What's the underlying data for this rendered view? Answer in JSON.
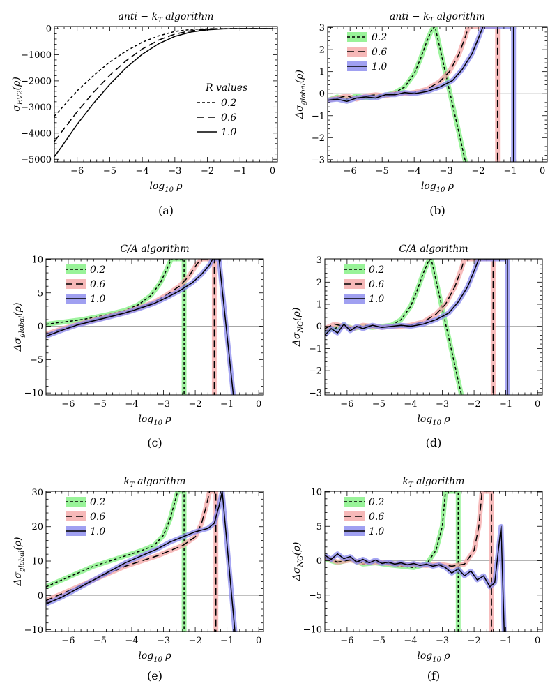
{
  "chart_data": [
    {
      "panel": "a",
      "type": "line",
      "title": "anti − k_T algorithm",
      "caption": "(a)",
      "xlabel": "log10 ρ",
      "ylabel": "σ_EV2(ρ)",
      "xlim": [
        -6.7,
        0.15
      ],
      "ylim": [
        -5100,
        80
      ],
      "xticks": [
        -6,
        -5,
        -4,
        -3,
        -2,
        -1,
        0
      ],
      "yticks": [
        -5000,
        -4000,
        -3000,
        -2000,
        -1000,
        0
      ],
      "legend": {
        "title": "R values",
        "position": "right-center",
        "shaded": false
      },
      "series": [
        {
          "name": "0.2",
          "style": "dotted",
          "x": [
            -6.7,
            -6.5,
            -6,
            -5.5,
            -5,
            -4.5,
            -4,
            -3.5,
            -3,
            -2.5,
            -2,
            -1.5,
            -1,
            -0.5,
            0
          ],
          "values": [
            -3350,
            -3080,
            -2380,
            -1800,
            -1280,
            -860,
            -520,
            -280,
            -110,
            -30,
            -5,
            0,
            0,
            0,
            0
          ]
        },
        {
          "name": "0.6",
          "style": "dashed",
          "x": [
            -6.7,
            -6.5,
            -6,
            -5.5,
            -5,
            -4.5,
            -4,
            -3.5,
            -3,
            -2.5,
            -2,
            -1.5,
            -1,
            -0.5,
            0
          ],
          "values": [
            -4320,
            -3990,
            -3180,
            -2440,
            -1790,
            -1230,
            -780,
            -440,
            -210,
            -80,
            -20,
            -3,
            0,
            0,
            0
          ]
        },
        {
          "name": "1.0",
          "style": "solid",
          "x": [
            -6.7,
            -6.5,
            -6,
            -5.5,
            -5,
            -4.5,
            -4,
            -3.5,
            -3,
            -2.5,
            -2,
            -1.5,
            -1,
            -0.5,
            0
          ],
          "values": [
            -4900,
            -4560,
            -3660,
            -2860,
            -2140,
            -1500,
            -980,
            -580,
            -300,
            -130,
            -45,
            -10,
            -1,
            0,
            0
          ]
        }
      ]
    },
    {
      "panel": "b",
      "type": "line",
      "title": "anti − k_T algorithm",
      "caption": "(b)",
      "xlabel": "log10 ρ",
      "ylabel": "Δσ_global(ρ)",
      "xlim": [
        -6.7,
        0.15
      ],
      "ylim": [
        -3.1,
        3.05
      ],
      "xticks": [
        -6,
        -5,
        -4,
        -3,
        -2,
        -1,
        0
      ],
      "yticks": [
        -3,
        -2,
        -1,
        0,
        1,
        2,
        3
      ],
      "legend": {
        "position": "top-left",
        "shaded": true
      },
      "series": [
        {
          "name": "0.2",
          "style": "dotted",
          "band": "#7ff07f",
          "x": [
            -6.7,
            -6.4,
            -6.1,
            -5.8,
            -5.5,
            -5.2,
            -4.9,
            -4.6,
            -4.3,
            -4.0,
            -3.8,
            -3.6,
            -3.45,
            -3.35,
            -2.4,
            -2.4
          ],
          "values": [
            -0.3,
            -0.15,
            -0.25,
            -0.1,
            -0.2,
            -0.12,
            -0.08,
            0.05,
            0.3,
            0.9,
            1.6,
            2.4,
            2.9,
            3.05,
            -3.1,
            -3.1
          ]
        },
        {
          "name": "0.6",
          "style": "dashed",
          "band": "#f4a6a6",
          "x": [
            -6.7,
            -6.4,
            -6.1,
            -5.8,
            -5.5,
            -5.2,
            -4.9,
            -4.6,
            -4.3,
            -4.0,
            -3.6,
            -3.2,
            -2.9,
            -2.6,
            -2.4,
            -2.3,
            -1.4,
            -1.4
          ],
          "values": [
            -0.3,
            -0.2,
            -0.1,
            -0.25,
            -0.1,
            -0.05,
            -0.1,
            0.0,
            0.0,
            0.05,
            0.2,
            0.55,
            1.0,
            1.8,
            2.6,
            3.05,
            3.05,
            -3.1
          ]
        },
        {
          "name": "1.0",
          "style": "solid",
          "band": "#8888ee",
          "x": [
            -6.7,
            -6.4,
            -6.1,
            -5.8,
            -5.5,
            -5.2,
            -4.9,
            -4.6,
            -4.3,
            -4.0,
            -3.6,
            -3.2,
            -2.8,
            -2.5,
            -2.2,
            -2.0,
            -1.85,
            -0.9,
            -0.9
          ],
          "values": [
            -0.3,
            -0.25,
            -0.35,
            -0.2,
            -0.15,
            -0.2,
            -0.05,
            -0.05,
            0.05,
            0.0,
            0.1,
            0.3,
            0.6,
            1.1,
            1.8,
            2.5,
            3.05,
            3.05,
            -3.1
          ]
        }
      ]
    },
    {
      "panel": "c",
      "type": "line",
      "title": "C/A algorithm",
      "caption": "(c)",
      "xlabel": "log10 ρ",
      "ylabel": "Δσ_global(ρ)",
      "xlim": [
        -6.7,
        0.15
      ],
      "ylim": [
        -10.3,
        10.1
      ],
      "xticks": [
        -6,
        -5,
        -4,
        -3,
        -2,
        -1,
        0
      ],
      "yticks": [
        -10,
        -5,
        0,
        5,
        10
      ],
      "legend": {
        "position": "top-left",
        "shaded": true
      },
      "series": [
        {
          "name": "0.2",
          "style": "dotted",
          "band": "#7ff07f",
          "x": [
            -6.7,
            -6.2,
            -5.7,
            -5.2,
            -4.7,
            -4.2,
            -3.8,
            -3.4,
            -3.1,
            -2.9,
            -2.75,
            -2.35,
            -2.35
          ],
          "values": [
            0.3,
            0.6,
            0.9,
            1.3,
            1.8,
            2.4,
            3.2,
            4.6,
            6.5,
            8.5,
            10.1,
            10.1,
            -10.3
          ]
        },
        {
          "name": "0.6",
          "style": "dashed",
          "band": "#f4a6a6",
          "x": [
            -6.7,
            -6.2,
            -5.7,
            -5.2,
            -4.7,
            -4.2,
            -3.8,
            -3.3,
            -2.9,
            -2.5,
            -2.2,
            -1.95,
            -1.8,
            -1.4,
            -1.4
          ],
          "values": [
            -1.2,
            -0.4,
            0.3,
            0.9,
            1.5,
            2.1,
            2.7,
            3.6,
            4.7,
            6.0,
            7.5,
            9.3,
            10.1,
            10.1,
            -10.3
          ]
        },
        {
          "name": "1.0",
          "style": "solid",
          "band": "#8888ee",
          "x": [
            -6.7,
            -6.2,
            -5.7,
            -5.2,
            -4.7,
            -4.2,
            -3.8,
            -3.3,
            -2.9,
            -2.5,
            -2.1,
            -1.8,
            -1.55,
            -1.45,
            -1.25,
            -0.8
          ],
          "values": [
            -1.5,
            -0.6,
            0.2,
            0.8,
            1.4,
            2.0,
            2.6,
            3.4,
            4.3,
            5.3,
            6.5,
            7.8,
            9.2,
            10.1,
            10.1,
            -10.3
          ]
        }
      ]
    },
    {
      "panel": "d",
      "type": "line",
      "title": "C/A algorithm",
      "caption": "(d)",
      "xlabel": "log10 ρ",
      "ylabel": "Δσ_NG(ρ)",
      "xlim": [
        -6.7,
        0.15
      ],
      "ylim": [
        -3.1,
        3.05
      ],
      "xticks": [
        -6,
        -5,
        -4,
        -3,
        -2,
        -1,
        0
      ],
      "yticks": [
        -3,
        -2,
        -1,
        0,
        1,
        2,
        3
      ],
      "legend": {
        "position": "top-left",
        "shaded": true
      },
      "series": [
        {
          "name": "0.2",
          "style": "dotted",
          "band": "#7ff07f",
          "x": [
            -6.7,
            -6.4,
            -6.1,
            -5.8,
            -5.5,
            -5.2,
            -4.9,
            -4.6,
            -4.3,
            -4.0,
            -3.8,
            -3.6,
            -3.45,
            -3.35,
            -2.4,
            -2.4
          ],
          "values": [
            -0.2,
            -0.1,
            0.05,
            -0.1,
            0.0,
            -0.05,
            0.0,
            0.05,
            0.3,
            0.9,
            1.6,
            2.4,
            2.9,
            3.05,
            -3.1,
            -3.1
          ]
        },
        {
          "name": "0.6",
          "style": "dashed",
          "band": "#f4a6a6",
          "x": [
            -6.7,
            -6.4,
            -6.1,
            -5.8,
            -5.5,
            -5.2,
            -4.9,
            -4.6,
            -4.3,
            -4.0,
            -3.6,
            -3.2,
            -2.9,
            -2.6,
            -2.4,
            -2.3,
            -1.4,
            -1.4
          ],
          "values": [
            -0.1,
            0.1,
            0.0,
            -0.1,
            0.05,
            0.0,
            -0.05,
            0.0,
            0.0,
            0.05,
            0.2,
            0.55,
            1.0,
            1.8,
            2.6,
            3.05,
            3.05,
            -3.1
          ]
        },
        {
          "name": "1.0",
          "style": "solid",
          "band": "#8888ee",
          "x": [
            -6.7,
            -6.5,
            -6.3,
            -6.1,
            -5.9,
            -5.7,
            -5.5,
            -5.2,
            -4.9,
            -4.6,
            -4.3,
            -4.0,
            -3.6,
            -3.2,
            -2.8,
            -2.5,
            -2.2,
            -2.0,
            -1.85,
            -0.95,
            -0.95
          ],
          "values": [
            -0.4,
            -0.1,
            -0.3,
            0.1,
            -0.2,
            0.0,
            -0.1,
            0.05,
            -0.05,
            0.0,
            0.05,
            0.0,
            0.1,
            0.3,
            0.6,
            1.1,
            1.8,
            2.5,
            3.05,
            3.05,
            -3.1
          ]
        }
      ]
    },
    {
      "panel": "e",
      "type": "line",
      "title": "k_T algorithm",
      "caption": "(e)",
      "xlabel": "log10 ρ",
      "ylabel": "Δσ_global(ρ)",
      "xlim": [
        -6.7,
        0.15
      ],
      "ylim": [
        -10.5,
        30.3
      ],
      "xticks": [
        -6,
        -5,
        -4,
        -3,
        -2,
        -1,
        0
      ],
      "yticks": [
        -10,
        0,
        10,
        20,
        30
      ],
      "legend": {
        "position": "top-left",
        "shaded": true
      },
      "series": [
        {
          "name": "0.2",
          "style": "dotted",
          "band": "#7ff07f",
          "x": [
            -6.7,
            -6.2,
            -5.7,
            -5.2,
            -4.7,
            -4.2,
            -3.7,
            -3.3,
            -3.0,
            -2.8,
            -2.65,
            -2.55,
            -2.35,
            -2.35
          ],
          "values": [
            2.5,
            4.5,
            6.5,
            8.5,
            10.0,
            11.5,
            13.0,
            14.5,
            17.5,
            22.0,
            27.0,
            30.3,
            30.3,
            -10.5
          ]
        },
        {
          "name": "0.6",
          "style": "dashed",
          "band": "#f4a6a6",
          "x": [
            -6.7,
            -6.2,
            -5.7,
            -5.2,
            -4.7,
            -4.2,
            -3.7,
            -3.2,
            -2.8,
            -2.4,
            -2.0,
            -1.8,
            -1.65,
            -1.55,
            -1.35,
            -1.35
          ],
          "values": [
            -1.5,
            0.5,
            2.5,
            4.5,
            6.5,
            8.5,
            10.0,
            11.5,
            13.0,
            14.5,
            17.0,
            21.0,
            26.0,
            30.3,
            30.3,
            -10.5
          ]
        },
        {
          "name": "1.0",
          "style": "solid",
          "band": "#8888ee",
          "x": [
            -6.7,
            -6.2,
            -5.7,
            -5.2,
            -4.7,
            -4.2,
            -3.7,
            -3.2,
            -2.8,
            -2.4,
            -2.0,
            -1.6,
            -1.4,
            -1.25,
            -1.15,
            -0.75
          ],
          "values": [
            -2.5,
            -0.5,
            2.0,
            4.5,
            7.0,
            9.5,
            11.5,
            13.5,
            15.5,
            17.0,
            18.5,
            19.5,
            21.0,
            26.0,
            30.3,
            -10.5
          ]
        }
      ]
    },
    {
      "panel": "f",
      "type": "line",
      "title": "k_T algorithm",
      "caption": "(f)",
      "xlabel": "log10 ρ",
      "ylabel": "Δσ_NG(ρ)",
      "xlim": [
        -6.7,
        0.15
      ],
      "ylim": [
        -10.3,
        10.1
      ],
      "xticks": [
        -6,
        -5,
        -4,
        -3,
        -2,
        -1,
        0
      ],
      "yticks": [
        -10,
        -5,
        0,
        5,
        10
      ],
      "legend": {
        "position": "top-left",
        "shaded": true
      },
      "series": [
        {
          "name": "0.2",
          "style": "dotted",
          "band": "#7ff07f",
          "x": [
            -6.7,
            -6.3,
            -5.9,
            -5.5,
            -5.1,
            -4.7,
            -4.3,
            -3.9,
            -3.5,
            -3.2,
            -3.0,
            -2.9,
            -2.5,
            -2.5
          ],
          "values": [
            0.3,
            -0.3,
            0.2,
            -0.5,
            -0.3,
            -0.6,
            -0.8,
            -1.0,
            -0.5,
            1.5,
            5.0,
            10.1,
            10.1,
            -10.3
          ]
        },
        {
          "name": "0.6",
          "style": "dashed",
          "band": "#f4a6a6",
          "x": [
            -6.7,
            -6.3,
            -5.9,
            -5.5,
            -5.1,
            -4.7,
            -4.3,
            -3.9,
            -3.5,
            -3.1,
            -2.7,
            -2.3,
            -2.0,
            -1.85,
            -1.75,
            -1.45,
            -1.45
          ],
          "values": [
            0.5,
            -0.2,
            0.1,
            -0.3,
            -0.2,
            -0.4,
            -0.5,
            -0.6,
            -0.7,
            -0.5,
            -0.8,
            -0.5,
            1.5,
            5.0,
            10.1,
            10.1,
            -10.3
          ]
        },
        {
          "name": "1.0",
          "style": "solid",
          "band": "#8888ee",
          "x": [
            -6.7,
            -6.5,
            -6.3,
            -6.1,
            -5.9,
            -5.7,
            -5.5,
            -5.3,
            -5.1,
            -4.9,
            -4.7,
            -4.5,
            -4.3,
            -4.1,
            -3.9,
            -3.7,
            -3.5,
            -3.3,
            -3.1,
            -2.9,
            -2.7,
            -2.5,
            -2.3,
            -2.1,
            -1.9,
            -1.7,
            -1.5,
            -1.35,
            -1.15,
            -1.05
          ],
          "values": [
            0.8,
            0.2,
            1.0,
            0.3,
            0.6,
            -0.2,
            0.2,
            -0.3,
            0.1,
            -0.4,
            -0.2,
            -0.5,
            -0.3,
            -0.6,
            -0.4,
            -0.7,
            -0.5,
            -0.8,
            -0.6,
            -1.0,
            -1.8,
            -1.2,
            -2.2,
            -1.5,
            -2.8,
            -2.2,
            -3.8,
            -3.2,
            5.0,
            -10.3
          ]
        }
      ]
    }
  ]
}
